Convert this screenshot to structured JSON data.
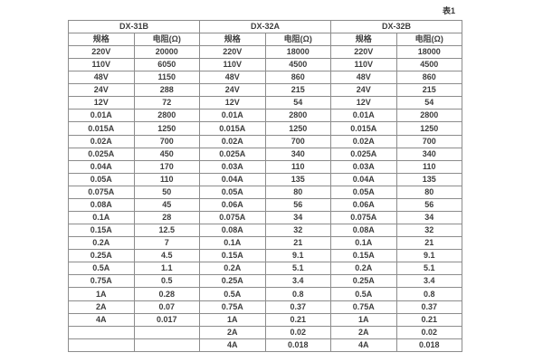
{
  "caption": "表1",
  "colors": {
    "background": "#ffffff",
    "table_border": "#8c8c8c",
    "text": "#3d3d3d"
  },
  "table": {
    "group_headers": [
      {
        "label": "DX-31B"
      },
      {
        "label": "DX-32A"
      },
      {
        "label": "DX-32B"
      }
    ],
    "column_headers": [
      "规格",
      "电阻(Ω)",
      "规格",
      "电阻(Ω)",
      "规格",
      "电阻(Ω)"
    ],
    "rows": [
      [
        "220V",
        "20000",
        "220V",
        "18000",
        "220V",
        "18000"
      ],
      [
        "110V",
        "6050",
        "110V",
        "4500",
        "110V",
        "4500"
      ],
      [
        "48V",
        "1150",
        "48V",
        "860",
        "48V",
        "860"
      ],
      [
        "24V",
        "288",
        "24V",
        "215",
        "24V",
        "215"
      ],
      [
        "12V",
        "72",
        "12V",
        "54",
        "12V",
        "54"
      ],
      [
        "0.01A",
        "2800",
        "0.01A",
        "2800",
        "0.01A",
        "2800"
      ],
      [
        "0.015A",
        "1250",
        "0.015A",
        "1250",
        "0.015A",
        "1250"
      ],
      [
        "0.02A",
        "700",
        "0.02A",
        "700",
        "0.02A",
        "700"
      ],
      [
        "0.025A",
        "450",
        "0.025A",
        "340",
        "0.025A",
        "340"
      ],
      [
        "0.04A",
        "170",
        "0.03A",
        "110",
        "0.03A",
        "110"
      ],
      [
        "0.05A",
        "110",
        "0.04A",
        "135",
        "0.04A",
        "135"
      ],
      [
        "0.075A",
        "50",
        "0.05A",
        "80",
        "0.05A",
        "80"
      ],
      [
        "0.08A",
        "45",
        "0.06A",
        "56",
        "0.06A",
        "56"
      ],
      [
        "0.1A",
        "28",
        "0.075A",
        "34",
        "0.075A",
        "34"
      ],
      [
        "0.15A",
        "12.5",
        "0.08A",
        "32",
        "0.08A",
        "32"
      ],
      [
        "0.2A",
        "7",
        "0.1A",
        "21",
        "0.1A",
        "21"
      ],
      [
        "0.25A",
        "4.5",
        "0.15A",
        "9.1",
        "0.15A",
        "9.1"
      ],
      [
        "0.5A",
        "1.1",
        "0.2A",
        "5.1",
        "0.2A",
        "5.1"
      ],
      [
        "0.75A",
        "0.5",
        "0.25A",
        "3.4",
        "0.25A",
        "3.4"
      ],
      [
        "1A",
        "0.28",
        "0.5A",
        "0.8",
        "0.5A",
        "0.8"
      ],
      [
        "2A",
        "0.07",
        "0.75A",
        "0.37",
        "0.75A",
        "0.37"
      ],
      [
        "4A",
        "0.017",
        "1A",
        "0.21",
        "1A",
        "0.21"
      ],
      [
        "",
        "",
        "2A",
        "0.02",
        "2A",
        "0.02"
      ],
      [
        "",
        "",
        "4A",
        "0.018",
        "4A",
        "0.018"
      ]
    ]
  }
}
